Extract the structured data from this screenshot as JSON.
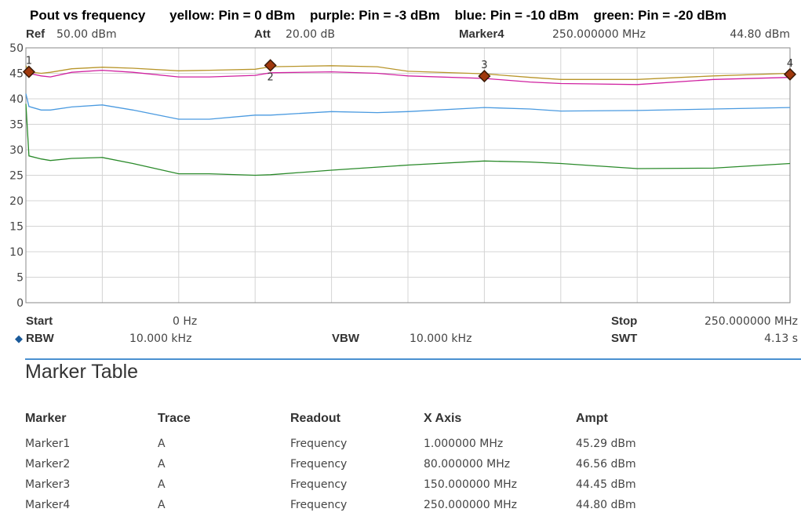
{
  "header": {
    "title_parts": [
      "Pout vs frequency",
      "yellow: Pin = 0 dBm",
      "purple: Pin = -3 dBm",
      "blue: Pin = -10 dBm",
      "green: Pin = -20 dBm"
    ]
  },
  "status_top": {
    "ref_label": "Ref",
    "ref_value": "50.00 dBm",
    "att_label": "Att",
    "att_value": "20.00 dB",
    "marker_label": "Marker4",
    "marker_freq": "250.000000 MHz",
    "marker_ampt": "44.80 dBm"
  },
  "status_bottom": {
    "start_label": "Start",
    "start_value": "0 Hz",
    "stop_label": "Stop",
    "stop_value": "250.000000 MHz",
    "rbw_label": "RBW",
    "rbw_value": "10.000 kHz",
    "vbw_label": "VBW",
    "vbw_value": "10.000 kHz",
    "swt_label": "SWT",
    "swt_value": "4.13 s"
  },
  "chart_data": {
    "type": "line",
    "xlim": [
      0,
      250
    ],
    "ylim": [
      0,
      50
    ],
    "x_unit": "MHz",
    "y_ticks": [
      "0",
      "5",
      "10",
      "15",
      "20",
      "25",
      "30",
      "35",
      "40",
      "45",
      "50"
    ],
    "x_divisions": 10,
    "grid": true,
    "x": [
      0,
      1,
      5,
      8,
      15,
      25,
      35,
      50,
      60,
      75,
      80,
      100,
      115,
      125,
      150,
      165,
      175,
      200,
      225,
      250
    ],
    "series": [
      {
        "color": "#b8952a",
        "values": [
          46.5,
          45.3,
          45.0,
          45.2,
          45.9,
          46.2,
          46.0,
          45.5,
          45.6,
          45.8,
          46.3,
          46.5,
          46.3,
          45.4,
          44.9,
          44.2,
          43.8,
          43.8,
          44.5,
          45.0
        ]
      },
      {
        "color": "#d020a0",
        "values": [
          45.5,
          45.0,
          44.5,
          44.3,
          45.2,
          45.6,
          45.2,
          44.3,
          44.3,
          44.6,
          45.1,
          45.3,
          45.0,
          44.5,
          44.0,
          43.3,
          43.0,
          42.8,
          43.8,
          44.2
        ]
      },
      {
        "color": "#4a9ae0",
        "values": [
          41.0,
          38.5,
          37.8,
          37.8,
          38.4,
          38.8,
          37.8,
          36.0,
          36.0,
          36.8,
          36.8,
          37.5,
          37.3,
          37.5,
          38.3,
          38.0,
          37.6,
          37.7,
          38.0,
          38.3
        ]
      },
      {
        "color": "#2a8a2a",
        "values": [
          39.0,
          28.8,
          28.2,
          27.9,
          28.3,
          28.5,
          27.3,
          25.3,
          25.3,
          25.0,
          25.1,
          26.0,
          26.6,
          27.0,
          27.8,
          27.6,
          27.3,
          26.3,
          26.4,
          27.3
        ]
      }
    ],
    "markers": [
      {
        "label": "1",
        "x": 1,
        "y": 45.29
      },
      {
        "label": "2",
        "x": 80,
        "y": 46.56
      },
      {
        "label": "3",
        "x": 150,
        "y": 44.45
      },
      {
        "label": "4",
        "x": 250,
        "y": 44.8
      }
    ]
  },
  "marker_table": {
    "title": "Marker Table",
    "columns": [
      "Marker",
      "Trace",
      "Readout",
      "X Axis",
      "Ampt"
    ],
    "rows": [
      [
        "Marker1",
        "A",
        "Frequency",
        "1.000000 MHz",
        "45.29 dBm"
      ],
      [
        "Marker2",
        "A",
        "Frequency",
        "80.000000 MHz",
        "46.56 dBm"
      ],
      [
        "Marker3",
        "A",
        "Frequency",
        "150.000000 MHz",
        "44.45 dBm"
      ],
      [
        "Marker4",
        "A",
        "Frequency",
        "250.000000 MHz",
        "44.80 dBm"
      ]
    ]
  }
}
